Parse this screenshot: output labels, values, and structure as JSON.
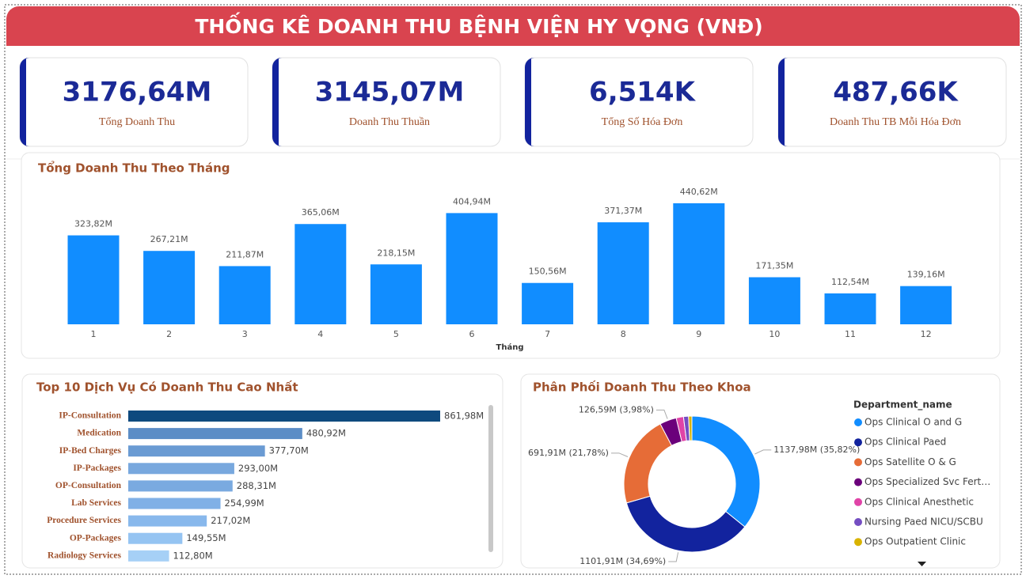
{
  "header": {
    "title": "THỐNG KÊ DOANH THU BỆNH VIỆN HY VỌNG (VNĐ)"
  },
  "kpis": [
    {
      "value": "3176,64M",
      "label": "Tổng Doanh Thu"
    },
    {
      "value": "3145,07M",
      "label": "Doanh Thu Thuần"
    },
    {
      "value": "6,514K",
      "label": "Tổng Số Hóa Đơn"
    },
    {
      "value": "487,66K",
      "label": "Doanh Thu TB Mỗi Hóa Đơn"
    }
  ],
  "chart_data": [
    {
      "type": "bar",
      "title": "Tổng Doanh Thu Theo Tháng",
      "x_label": "Tháng",
      "categories": [
        "1",
        "2",
        "3",
        "4",
        "5",
        "6",
        "7",
        "8",
        "9",
        "10",
        "11",
        "12"
      ],
      "values": [
        323.82,
        267.21,
        211.87,
        365.06,
        218.15,
        404.94,
        150.56,
        371.37,
        440.62,
        171.35,
        112.54,
        139.16
      ],
      "value_labels": [
        "323,82M",
        "267,21M",
        "211,87M",
        "365,06M",
        "218,15M",
        "404,94M",
        "150,56M",
        "371,37M",
        "440,62M",
        "171,35M",
        "112,54M",
        "139,16M"
      ],
      "color": "#118dff"
    },
    {
      "type": "hbar",
      "title": "Top 10 Dịch Vụ Có Doanh Thu Cao Nhất",
      "categories": [
        "IP-Consultation",
        "Medication",
        "IP-Bed Charges",
        "IP-Packages",
        "OP-Consultation",
        "Lab Services",
        "Procedure Services",
        "OP-Packages",
        "Radiology Services"
      ],
      "values": [
        861.98,
        480.92,
        377.7,
        293.0,
        288.31,
        254.99,
        217.02,
        149.55,
        112.8
      ],
      "value_labels": [
        "861,98M",
        "480,92M",
        "377,70M",
        "293,00M",
        "288,31M",
        "254,99M",
        "217,02M",
        "149,55M",
        "112,80M"
      ],
      "colors": [
        "#0e4a7e",
        "#5b8dc6",
        "#6a9bd3",
        "#78a8de",
        "#7aaae0",
        "#80b0e6",
        "#88b8ec",
        "#95c4f2",
        "#a6d0f6"
      ]
    },
    {
      "type": "donut",
      "title": "Phân Phối Doanh Thu Theo Khoa",
      "legend_title": "Department_name",
      "categories": [
        "Ops Clinical O and G",
        "Ops Clinical Paed",
        "Ops Satellite O & G",
        "Ops Specialized Svc Fert…",
        "Ops Clinical Anesthetic",
        "Nursing Paed NICU/SCBU",
        "Ops Outpatient Clinic"
      ],
      "values": [
        1137.98,
        1101.91,
        691.91,
        126.59,
        55,
        38,
        25
      ],
      "value_labels": [
        "1137,98M (35,82%)",
        "1101,91M (34,69%)",
        "691,91M (21,78%)",
        "126,59M (3,98%)",
        null,
        null,
        null
      ],
      "colors": [
        "#118dff",
        "#12239e",
        "#e66c37",
        "#6b007b",
        "#e044a7",
        "#744ec2",
        "#d9b300"
      ]
    }
  ]
}
